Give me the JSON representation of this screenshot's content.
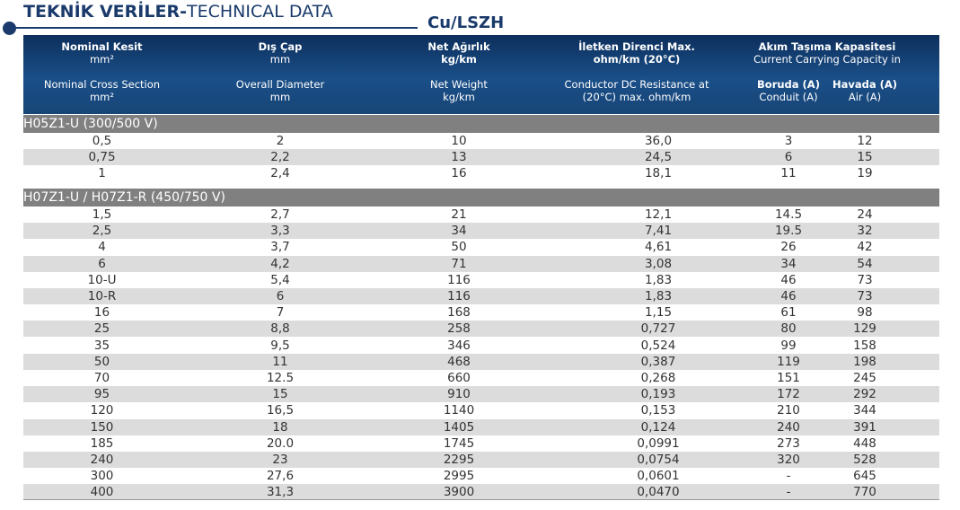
{
  "title": {
    "bold": "TEKNİK VERİLER-",
    "normal": "TECHNICAL DATA"
  },
  "subtitle": "Cu/LSZH",
  "header": {
    "c1": {
      "tr": "Nominal Kesit",
      "tr_unit": "mm²",
      "en": "Nominal Cross Section",
      "en_unit": "mm²"
    },
    "c2": {
      "tr": "Dış Çap",
      "tr_unit": "mm",
      "en": "Overall Diameter",
      "en_unit": "mm"
    },
    "c3": {
      "tr": "Net Ağırlık",
      "tr_unit": "kg/km",
      "en": "Net Weight",
      "en_unit": "kg/km"
    },
    "c4": {
      "tr": "İletken Direnci Max.",
      "tr_unit": "ohm/km (20°C)",
      "en": "Conductor DC Resistance at",
      "en_unit": "(20°C) max. ohm/km"
    },
    "c5": {
      "tr": "Akım Taşıma Kapasitesi",
      "en": "Current Carrying Capacity in",
      "conduit_tr": "Boruda (A)",
      "conduit_en": "Conduit (A)",
      "air_tr": "Havada (A)",
      "air_en": "Air (A)"
    }
  },
  "sections": [
    {
      "label": "H05Z1-U (300/500 V)",
      "rows": [
        [
          "0,5",
          "2",
          "10",
          "36,0",
          "3",
          "12"
        ],
        [
          "0,75",
          "2,2",
          "13",
          "24,5",
          "6",
          "15"
        ],
        [
          "1",
          "2,4",
          "16",
          "18,1",
          "11",
          "19"
        ]
      ]
    },
    {
      "label": "H07Z1-U / H07Z1-R (450/750 V)",
      "rows": [
        [
          "1,5",
          "2,7",
          "21",
          "12,1",
          "14.5",
          "24"
        ],
        [
          "2,5",
          "3,3",
          "34",
          "7,41",
          "19.5",
          "32"
        ],
        [
          "4",
          "3,7",
          "50",
          "4,61",
          "26",
          "42"
        ],
        [
          "6",
          "4,2",
          "71",
          "3,08",
          "34",
          "54"
        ],
        [
          "10-U",
          "5,4",
          "116",
          "1,83",
          "46",
          "73"
        ],
        [
          "10-R",
          "6",
          "116",
          "1,83",
          "46",
          "73"
        ],
        [
          "16",
          "7",
          "168",
          "1,15",
          "61",
          "98"
        ],
        [
          "25",
          "8,8",
          "258",
          "0,727",
          "80",
          "129"
        ],
        [
          "35",
          "9,5",
          "346",
          "0,524",
          "99",
          "158"
        ],
        [
          "50",
          "11",
          "468",
          "0,387",
          "119",
          "198"
        ],
        [
          "70",
          "12.5",
          "660",
          "0,268",
          "151",
          "245"
        ],
        [
          "95",
          "15",
          "910",
          "0,193",
          "172",
          "292"
        ],
        [
          "120",
          "16,5",
          "1140",
          "0,153",
          "210",
          "344"
        ],
        [
          "150",
          "18",
          "1405",
          "0,124",
          "240",
          "391"
        ],
        [
          "185",
          "20.0",
          "1745",
          "0,0991",
          "273",
          "448"
        ],
        [
          "240",
          "23",
          "2295",
          "0,0754",
          "320",
          "528"
        ],
        [
          "300",
          "27,6",
          "2995",
          "0,0601",
          "-",
          "645"
        ],
        [
          "400",
          "31,3",
          "3900",
          "0,0470",
          "-",
          "770"
        ]
      ]
    }
  ]
}
